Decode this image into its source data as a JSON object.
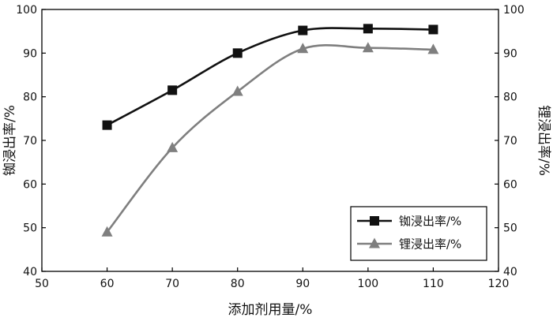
{
  "chart_data": {
    "type": "line",
    "x": [
      60,
      70,
      80,
      90,
      100,
      110
    ],
    "xlabel": "添加剂用量/%",
    "ylabel_left": "铷浸出率/%",
    "ylabel_right": "锂浸出率/%",
    "xlim": [
      50,
      120
    ],
    "ylim": [
      40,
      100
    ],
    "xticks": [
      50,
      60,
      70,
      80,
      90,
      100,
      110,
      120
    ],
    "yticks": [
      40,
      50,
      60,
      70,
      80,
      90,
      100
    ],
    "grid": false,
    "legend_position": "bottom-right",
    "series": [
      {
        "name": "铷浸出率/%",
        "axis": "left",
        "marker": "square",
        "color": "#111111",
        "values": [
          73.5,
          81.5,
          90.0,
          95.2,
          95.6,
          95.4
        ]
      },
      {
        "name": "锂浸出率/%",
        "axis": "right",
        "marker": "triangle",
        "color": "#7f7f7f",
        "values": [
          49.0,
          68.3,
          81.2,
          91.0,
          91.2,
          90.8
        ]
      }
    ]
  }
}
